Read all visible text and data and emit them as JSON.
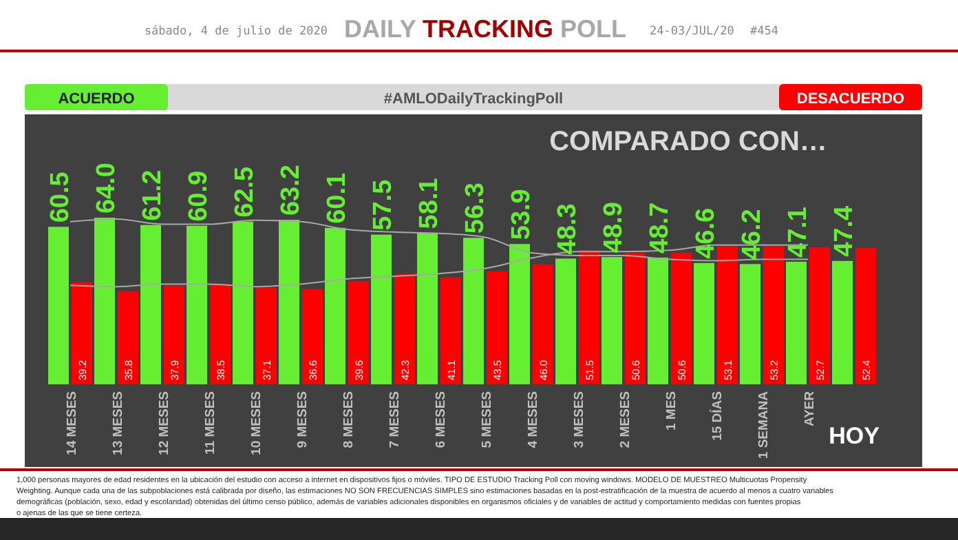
{
  "chart_data": {
    "type": "bar",
    "title": "DAILY TRACKING POLL",
    "subtitle": "COMPARADO CON…",
    "legend_title": "#AMLODailyTrackingPoll",
    "annotations": [
      "sábado, 4 de julio de 2020",
      "24-03/JUL/20",
      "#454",
      "1,000 personas mayores de edad residentes en la ubicación del estudio con acceso a internet en dispositivos fijos o móviles. TIPO DE ESTUDIO Tracking Poll con moving windows. MODELO DE MUESTREO Multicuotas Propensity Weighting. Aunque cada una de las subpoblaciones está calibrada por diseño, las estimaciones NO SON FRECUENCIAS SIMPLES sino estimaciones basadas en la post-estratificación de la muestra de acuerdo al menos a cuatro variables demográficas (población, sexo, edad y escolaridad) obtenidas del último censo público, además de variables adicionales disponibles en organismos oficiales y de variables de actitud y comportamiento medidas con fuentes propias o ajenas de las que se tiene certeza."
    ],
    "categories": [
      "14 MESES",
      "13 MESES",
      "12 MESES",
      "11 MESES",
      "10 MESES",
      "9 MESES",
      "8 MESES",
      "7 MESES",
      "6 MESES",
      "5 MESES",
      "4 MESES",
      "3 MESES",
      "2 MESES",
      "1 MES",
      "15 DÍAS",
      "1 SEMANA",
      "AYER",
      "HOY"
    ],
    "legend": "top",
    "series": [
      {
        "name": "ACUERDO",
        "color": "#66ee33",
        "values": [
          60.5,
          64.0,
          61.2,
          60.9,
          62.5,
          63.2,
          60.1,
          57.5,
          58.1,
          56.3,
          53.9,
          48.3,
          48.9,
          48.7,
          46.6,
          46.2,
          47.1,
          47.4
        ],
        "value_labels": [
          "60.5",
          "64.0",
          "61.2",
          "60.9",
          "62.5",
          "63.2",
          "60.1",
          "57.5",
          "58.1",
          "56.3",
          "53.9",
          "48.3",
          "48.9",
          "48.7",
          "46.6",
          "46.2",
          "47.1",
          "47.4"
        ]
      },
      {
        "name": "DESACUERDO",
        "color": "#ff0000",
        "values": [
          39.2,
          35.8,
          37.9,
          38.5,
          37.1,
          36.6,
          39.6,
          42.3,
          41.1,
          43.5,
          46.0,
          51.5,
          50.6,
          50.6,
          53.1,
          53.2,
          52.7,
          52.4
        ],
        "value_labels": [
          "39.2",
          "35.8",
          "37.9",
          "38.5",
          "37.1",
          "36.6",
          "39.6",
          "42.3",
          "41.1",
          "43.5",
          "46.0",
          "51.5",
          "50.6",
          "50.6",
          "53.1",
          "53.2",
          "52.7",
          "52.4"
        ]
      },
      {
        "type": "line",
        "color": "#a8a8a8",
        "values": [
          62.5,
          63.5,
          61.5,
          61.5,
          63,
          62.5,
          59.5,
          58.5,
          58,
          56.5,
          50.5,
          49.5,
          49.5,
          48,
          47.5,
          48,
          48,
          null
        ]
      },
      {
        "type": "line",
        "color": "#a8a8a8",
        "values": [
          38,
          37.5,
          38.5,
          38.5,
          37.5,
          38.5,
          40.5,
          41.5,
          42.5,
          44.5,
          48.5,
          51,
          51,
          51.5,
          53.5,
          53.5,
          53.5,
          null
        ]
      }
    ]
  }
}
